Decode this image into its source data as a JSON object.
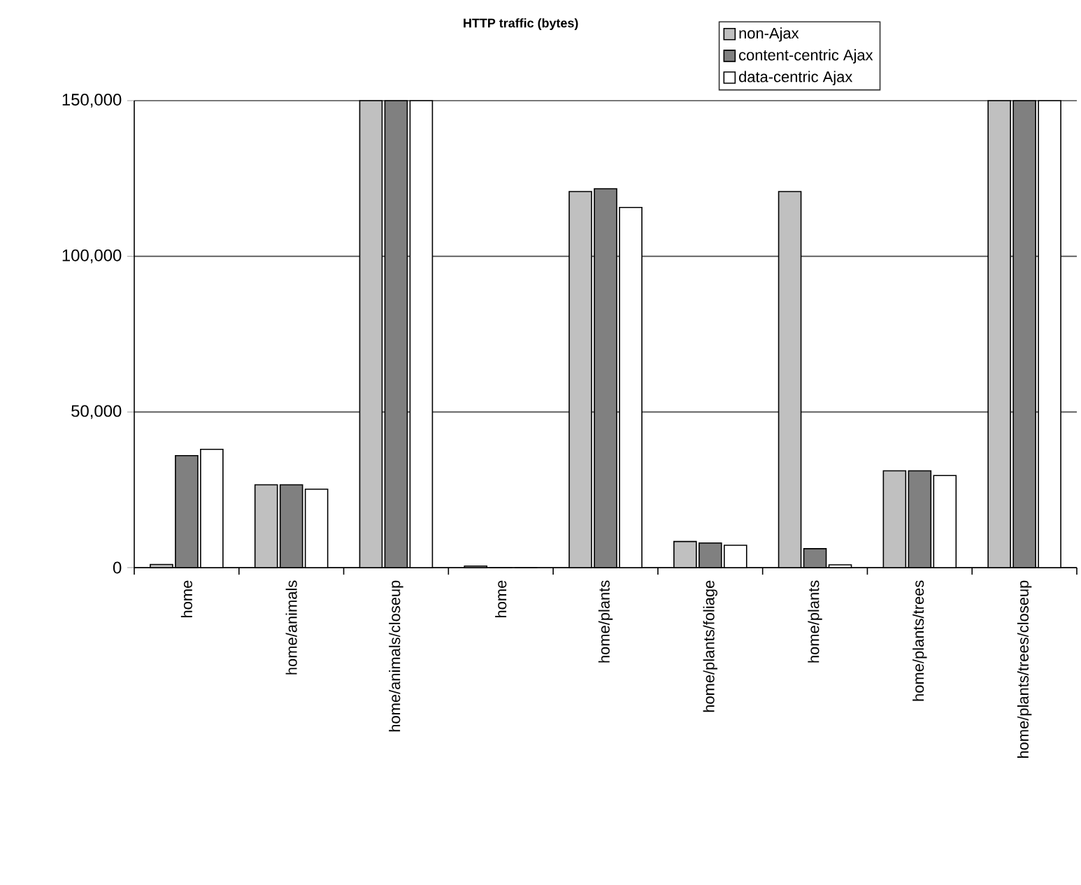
{
  "chart_data": {
    "type": "bar",
    "title": "HTTP traffic (bytes)",
    "categories": [
      "home",
      "home/animals",
      "home/animals/closeup",
      "home",
      "home/plants",
      "home/plants/foliage",
      "home/plants",
      "home/plants/trees",
      "home/plants/trees/closeup"
    ],
    "series": [
      {
        "name": "non-Ajax",
        "color": "#c0c0c0",
        "values": [
          1000,
          26600,
          150000,
          500,
          120800,
          8400,
          120800,
          31100,
          150000
        ]
      },
      {
        "name": "content-centric Ajax",
        "color": "#808080",
        "values": [
          36000,
          26600,
          150000,
          0,
          121700,
          7900,
          6100,
          31100,
          150000
        ]
      },
      {
        "name": "data-centric Ajax",
        "color": "#ffffff",
        "values": [
          38000,
          25200,
          150000,
          0,
          115700,
          7200,
          900,
          29600,
          150000
        ]
      }
    ],
    "ylim": [
      0,
      150000
    ],
    "yticks": [
      {
        "value": 0,
        "label": "0"
      },
      {
        "value": 50000,
        "label": "50,000"
      },
      {
        "value": 100000,
        "label": "100,000"
      },
      {
        "value": 150000,
        "label": "150,000"
      }
    ],
    "grid": "y",
    "legend": "top right"
  }
}
